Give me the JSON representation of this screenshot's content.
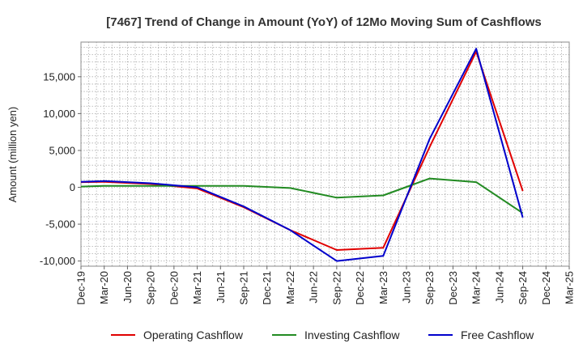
{
  "chart_data": {
    "type": "line",
    "title": "[7467]  Trend of Change in Amount (YoY) of 12Mo Moving Sum of Cashflows",
    "xlabel": "",
    "ylabel": "Amount (million yen)",
    "ylim": [
      -10700,
      19700
    ],
    "yticks": [
      15000,
      10000,
      5000,
      0,
      -5000,
      -10000
    ],
    "ytick_labels": [
      "15,000",
      "10,000",
      "5,000",
      "0",
      "-5,000",
      "-10,000"
    ],
    "categories": [
      "Dec-19",
      "Mar-20",
      "Jun-20",
      "Sep-20",
      "Dec-20",
      "Mar-21",
      "Jun-21",
      "Sep-21",
      "Dec-21",
      "Mar-22",
      "Jun-22",
      "Sep-22",
      "Dec-22",
      "Mar-23",
      "Jun-23",
      "Sep-23",
      "Dec-23",
      "Mar-24",
      "Jun-24",
      "Sep-24",
      "Dec-24",
      "Mar-25"
    ],
    "grid": true,
    "legend_position": "bottom",
    "series": [
      {
        "name": "Operating Cashflow",
        "color": "#e00000",
        "values": [
          700,
          750,
          null,
          450,
          null,
          -150,
          null,
          -2700,
          null,
          -5800,
          null,
          -8500,
          null,
          -8200,
          null,
          5500,
          null,
          18400,
          null,
          -500,
          null,
          null
        ]
      },
      {
        "name": "Investing Cashflow",
        "color": "#228b22",
        "values": [
          100,
          200,
          null,
          200,
          null,
          200,
          null,
          200,
          null,
          -100,
          null,
          -1400,
          null,
          -1100,
          null,
          1200,
          null,
          700,
          null,
          -3500,
          null,
          null
        ]
      },
      {
        "name": "Free Cashflow",
        "color": "#0000cc",
        "values": [
          750,
          850,
          null,
          550,
          null,
          0,
          null,
          -2600,
          null,
          -5800,
          null,
          -10000,
          null,
          -9300,
          null,
          6600,
          null,
          18800,
          null,
          -4100,
          null,
          null
        ]
      }
    ]
  }
}
